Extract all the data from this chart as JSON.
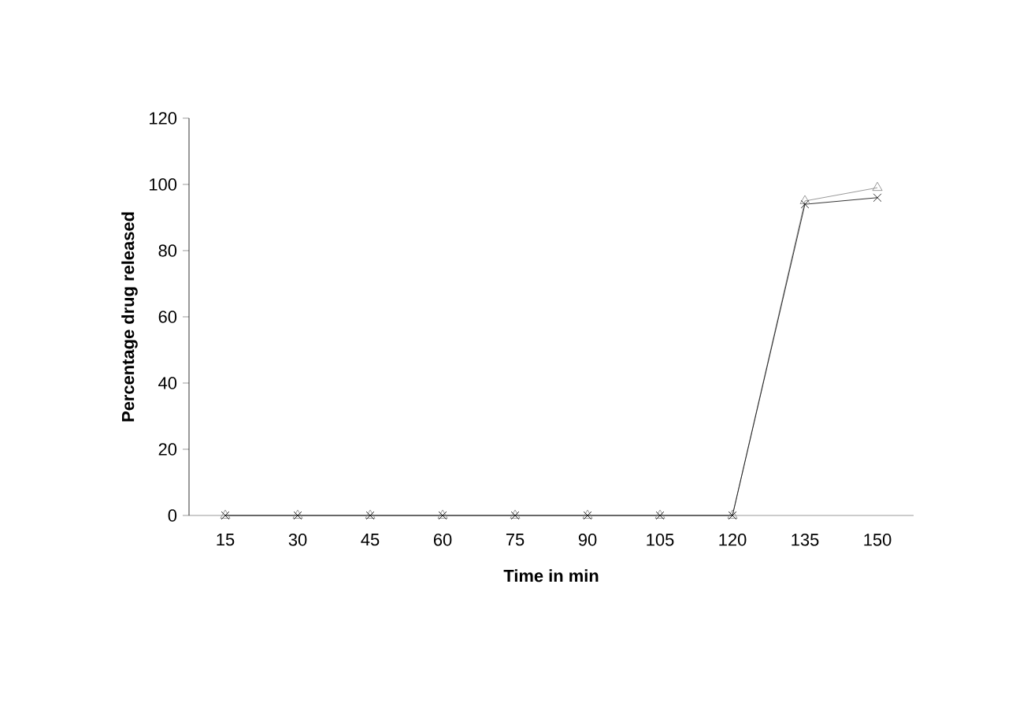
{
  "chart_data": {
    "type": "line",
    "xlabel": "Time in min",
    "ylabel": "Percentage drug released",
    "categories": [
      "15",
      "30",
      "45",
      "60",
      "75",
      "90",
      "105",
      "120",
      "135",
      "150"
    ],
    "series": [
      {
        "color": "#808080",
        "marker": "triangle",
        "values": [
          0,
          0,
          0,
          0,
          0,
          0,
          0,
          0,
          95,
          99
        ]
      },
      {
        "color": "#000000",
        "marker": "cross",
        "values": [
          0,
          0,
          0,
          0,
          0,
          0,
          0,
          0,
          94,
          96
        ]
      }
    ],
    "ylim": [
      0,
      120
    ],
    "yticks": [
      0,
      20,
      40,
      60,
      80,
      100,
      120
    ],
    "grid": false,
    "line_style": "solid"
  }
}
